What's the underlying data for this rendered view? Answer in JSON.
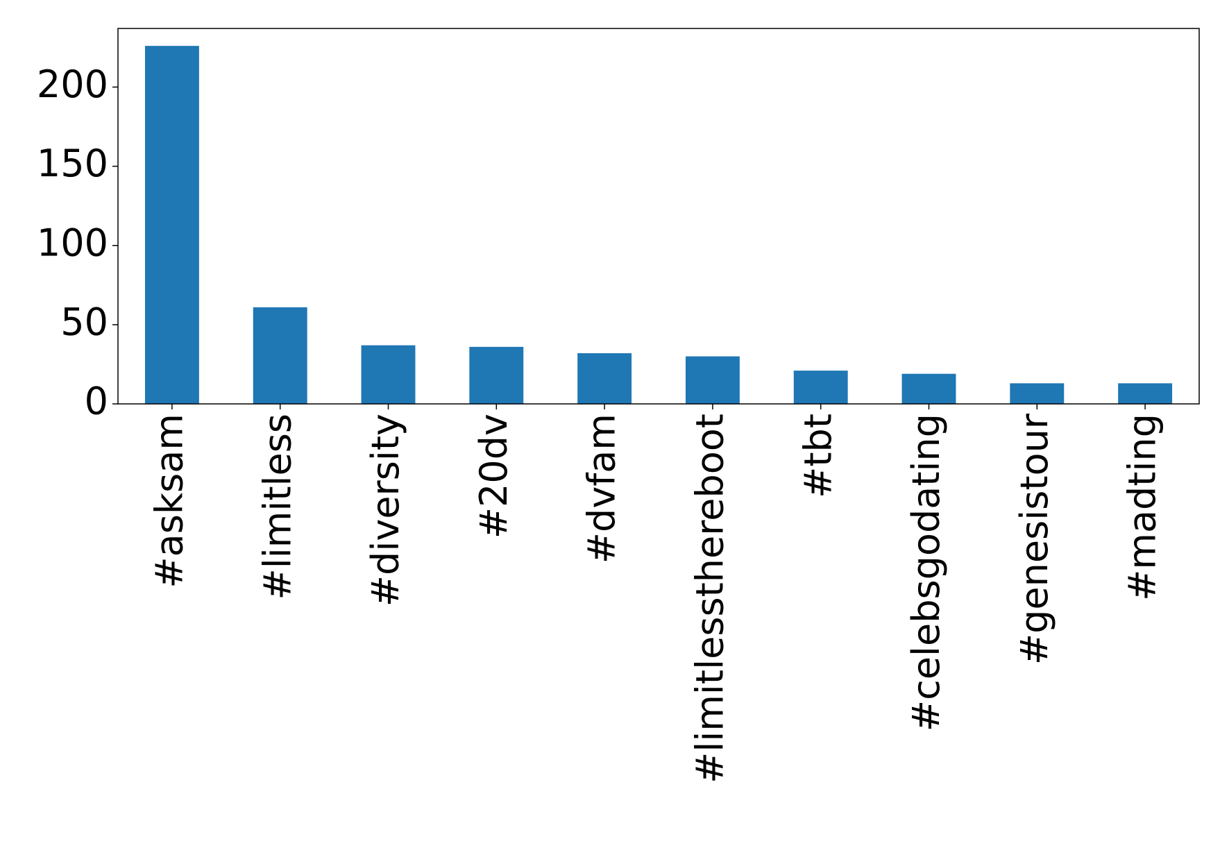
{
  "chart_data": {
    "type": "bar",
    "categories": [
      "#asksam",
      "#limitless",
      "#diversity",
      "#20dv",
      "#dvfam",
      "#limitlessthereboot",
      "#tbt",
      "#celebsgodating",
      "#genesistour",
      "#madting"
    ],
    "values": [
      226,
      61,
      37,
      36,
      32,
      30,
      21,
      19,
      13,
      13
    ],
    "color": "#1f77b4",
    "ylim": [
      0,
      237
    ],
    "yticks": [
      0,
      50,
      100,
      150,
      200
    ],
    "grid": false
  }
}
